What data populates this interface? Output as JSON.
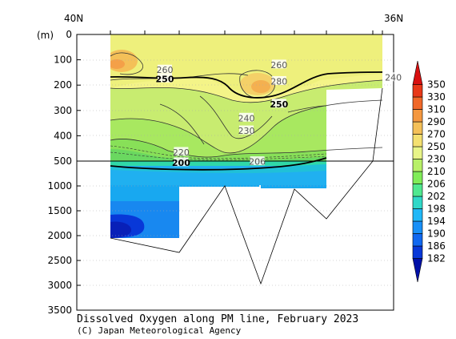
{
  "chart_data": {
    "type": "heatmap",
    "title": "Dissolved Oxygen along PM line, February 2023",
    "credit": "(C) Japan Meteorological Agency",
    "x_labels": {
      "left": "40N",
      "right": "36N"
    },
    "ylabel": "(m)",
    "y_ticks": [
      "0",
      "100",
      "200",
      "300",
      "400",
      "500",
      "1000",
      "1500",
      "2000",
      "2500",
      "3000",
      "3500"
    ],
    "y_axis_segments": [
      {
        "range": [
          0,
          500
        ],
        "scale": "linear upper"
      },
      {
        "range": [
          500,
          3500
        ],
        "scale": "linear lower"
      }
    ],
    "ylim": [
      0,
      3500
    ],
    "colorbar": {
      "levels": [
        182,
        186,
        190,
        194,
        198,
        202,
        206,
        210,
        230,
        250,
        270,
        290,
        310,
        330,
        350
      ],
      "colors": [
        "#0010a8",
        "#0838d8",
        "#1068f0",
        "#1890f8",
        "#20b8f8",
        "#30d8c8",
        "#50e890",
        "#80ec58",
        "#b8f068",
        "#e8f488",
        "#f4e070",
        "#f4c058",
        "#f49840",
        "#f06828",
        "#e83818",
        "#d81010"
      ]
    },
    "contour_labels": [
      {
        "text": "260",
        "x": 0.1,
        "depth": 140
      },
      {
        "text": "250",
        "x": 0.1,
        "depth": 175,
        "bold": true
      },
      {
        "text": "260",
        "x": 0.31,
        "depth": 120
      },
      {
        "text": "280",
        "x": 0.31,
        "depth": 185
      },
      {
        "text": "250",
        "x": 0.31,
        "depth": 275,
        "bold": true
      },
      {
        "text": "240",
        "x": 0.52,
        "depth": 170
      },
      {
        "text": "240",
        "x": 0.25,
        "depth": 330
      },
      {
        "text": "230",
        "x": 0.25,
        "depth": 380
      },
      {
        "text": "220",
        "x": 0.13,
        "depth": 465
      },
      {
        "text": "206",
        "x": 0.27,
        "depth": 510
      },
      {
        "text": "200",
        "x": 0.13,
        "depth": 530,
        "bold": true
      }
    ],
    "grid": true
  }
}
